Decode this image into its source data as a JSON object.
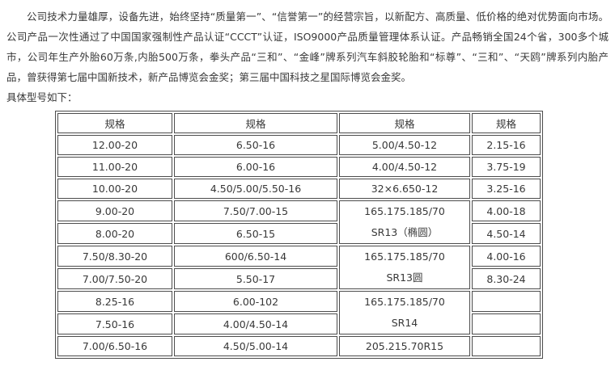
{
  "page": {
    "background": "#ffffff",
    "text_color": "#383838",
    "table_border_color": "#4c4c4c"
  },
  "intro": {
    "paragraph": "公司技术力量雄厚，设备先进，始终坚持“质量第一”、“信誉第一”的经营宗旨，以新配方、高质量、低价格的绝对优势面向市场。公司产品一次性通过了中国国家强制性产品认证“CCCT”认证，ISO9000产品质量管理体系认证。产品畅销全国24个省，300多个城市，公司年生产外胎60万条,内胎500万条，拳头产品“三和”、“金峰”牌系列汽车斜胶轮胎和“标尊”、“三和”、“天鸥”牌系列内胎产品，曾获得第七届中国新技术，新产品博览会金奖；第三届中国科技之星国际博览会金奖。",
    "models_label": "具体型号如下："
  },
  "spec_table": {
    "headers": [
      "规格",
      "规格",
      "规格",
      "规格"
    ],
    "rows": [
      [
        {
          "t": "12.00-20"
        },
        {
          "t": "6.50-16"
        },
        {
          "t": "5.00/4.50-12"
        },
        {
          "t": "2.15-16"
        }
      ],
      [
        {
          "t": "11.00-20"
        },
        {
          "t": "6.00-16"
        },
        {
          "t": "4.00/4.50-12"
        },
        {
          "t": "3.75-19"
        }
      ],
      [
        {
          "t": "10.00-20"
        },
        {
          "t": "4.50/5.00/5.50-16"
        },
        {
          "t": "32×6.650-12"
        },
        {
          "t": "3.25-16"
        }
      ],
      [
        {
          "t": "9.00-20"
        },
        {
          "t": "7.50/7.00-15"
        },
        {
          "lines": [
            "165.175.185/70",
            "SR13（椭圆）"
          ],
          "rowspan": 2
        },
        {
          "t": "4.00-18"
        }
      ],
      [
        {
          "t": "8.00-20"
        },
        {
          "t": "6.50-15"
        },
        {
          "t": "4.50-14"
        }
      ],
      [
        {
          "t": "7.50/8.30-20"
        },
        {
          "t": "600/6.50-14"
        },
        {
          "lines": [
            "165.175.185/70",
            "SR13圆"
          ],
          "rowspan": 2
        },
        {
          "t": "4.00-16"
        }
      ],
      [
        {
          "t": "7.00/7.50-20"
        },
        {
          "t": "5.50-17"
        },
        {
          "t": "8.30-24"
        }
      ],
      [
        {
          "t": "8.25-16"
        },
        {
          "t": "6.00-102"
        },
        {
          "lines": [
            "165.175.185/70",
            "SR14"
          ],
          "rowspan": 2
        },
        {
          "t": ""
        }
      ],
      [
        {
          "t": "7.50-16"
        },
        {
          "t": "4.00/4.50-14"
        },
        {
          "t": ""
        }
      ],
      [
        {
          "t": "7.00/6.50-16"
        },
        {
          "t": "4.50/5.00-14"
        },
        {
          "t": "205.215.70R15"
        },
        {
          "t": ""
        }
      ]
    ]
  }
}
